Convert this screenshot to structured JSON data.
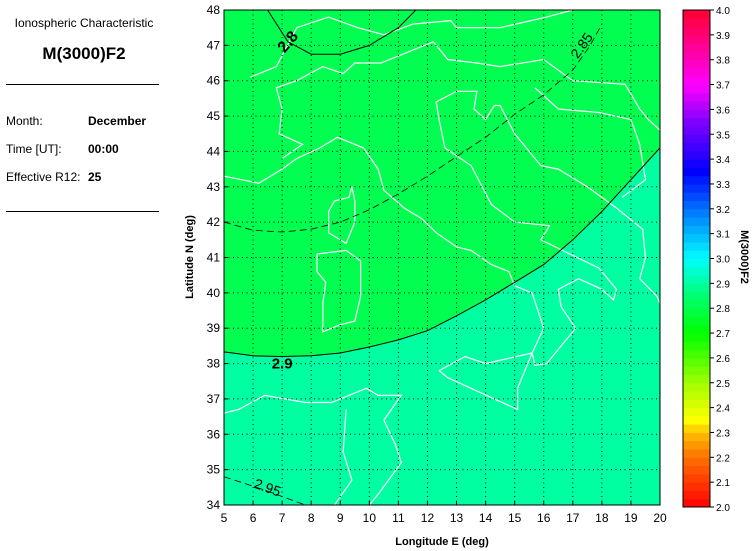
{
  "info": {
    "subtitle": "Ionospheric Characteristic",
    "title": "M(3000)F2",
    "month_label": "Month:",
    "month": "December",
    "time_label": "Time [UT]:",
    "time": "00:00",
    "r12_label": "Effective R12:",
    "r12": "25"
  },
  "chart_data": {
    "type": "contour-map",
    "xlabel": "Longitude E (deg)",
    "ylabel": "Latitude N (deg)",
    "xlim": [
      5,
      20
    ],
    "ylim": [
      34,
      48
    ],
    "xticks": [
      "5",
      "6",
      "7",
      "8",
      "9",
      "10",
      "11",
      "12",
      "13",
      "14",
      "15",
      "16",
      "17",
      "18",
      "19",
      "20"
    ],
    "yticks": [
      "34",
      "35",
      "36",
      "37",
      "38",
      "39",
      "40",
      "41",
      "42",
      "43",
      "44",
      "45",
      "46",
      "47",
      "48"
    ],
    "grid": true,
    "contours": [
      {
        "level": "2.8",
        "style": "solid",
        "points": [
          [
            6.5,
            48
          ],
          [
            7.2,
            47.1
          ],
          [
            8,
            46.75
          ],
          [
            9,
            46.75
          ],
          [
            10,
            47
          ],
          [
            11,
            47.5
          ],
          [
            11.6,
            48
          ]
        ]
      },
      {
        "level": "2.85",
        "style": "dashed",
        "points": [
          [
            5,
            42
          ],
          [
            6,
            41.77
          ],
          [
            7,
            41.72
          ],
          [
            8,
            41.8
          ],
          [
            9,
            42
          ],
          [
            10,
            42.35
          ],
          [
            11,
            42.8
          ],
          [
            12,
            43.3
          ],
          [
            13,
            43.85
          ],
          [
            14,
            44.4
          ],
          [
            15,
            45.05
          ],
          [
            16,
            45.6
          ],
          [
            17,
            46.3
          ],
          [
            17.6,
            47
          ],
          [
            18,
            47.6
          ]
        ]
      },
      {
        "level": "2.9",
        "style": "solid",
        "points": [
          [
            5,
            38.33
          ],
          [
            6,
            38.22
          ],
          [
            7,
            38.2
          ],
          [
            8,
            38.22
          ],
          [
            9,
            38.3
          ],
          [
            10,
            38.47
          ],
          [
            11,
            38.67
          ],
          [
            12,
            38.93
          ],
          [
            13,
            39.35
          ],
          [
            14,
            39.8
          ],
          [
            15,
            40.3
          ],
          [
            16,
            40.8
          ],
          [
            17,
            41.5
          ],
          [
            18,
            42.3
          ],
          [
            19,
            43.2
          ],
          [
            20,
            44.1
          ]
        ]
      },
      {
        "level": "2.95",
        "style": "dashed",
        "points": [
          [
            5,
            34.8
          ],
          [
            6.3,
            34.45
          ],
          [
            7.8,
            34
          ]
        ]
      }
    ],
    "fill_colors": {
      "2.8-2.9": "#00ff50",
      "2.9-3.0": "#00ffa0"
    },
    "colorbar": {
      "label": "M(3000)F2",
      "range": [
        2.0,
        4.0
      ],
      "ticks": [
        "2.0",
        "2.1",
        "2.2",
        "2.3",
        "2.4",
        "2.5",
        "2.6",
        "2.7",
        "2.8",
        "2.9",
        "3.0",
        "3.1",
        "3.2",
        "3.3",
        "3.4",
        "3.5",
        "3.6",
        "3.7",
        "3.8",
        "3.9",
        "4.0"
      ],
      "stops": [
        {
          "v": 2.0,
          "c": "#ff0000"
        },
        {
          "v": 2.2,
          "c": "#ff7000"
        },
        {
          "v": 2.3,
          "c": "#ffc000"
        },
        {
          "v": 2.35,
          "c": "#ffff00"
        },
        {
          "v": 2.5,
          "c": "#a0ff00"
        },
        {
          "v": 2.7,
          "c": "#00ff00"
        },
        {
          "v": 2.85,
          "c": "#00ff70"
        },
        {
          "v": 3.0,
          "c": "#00ffff"
        },
        {
          "v": 3.2,
          "c": "#0070ff"
        },
        {
          "v": 3.35,
          "c": "#0000ff"
        },
        {
          "v": 3.55,
          "c": "#8000ff"
        },
        {
          "v": 3.7,
          "c": "#ff00ff"
        },
        {
          "v": 4.0,
          "c": "#ff0030"
        }
      ]
    }
  }
}
